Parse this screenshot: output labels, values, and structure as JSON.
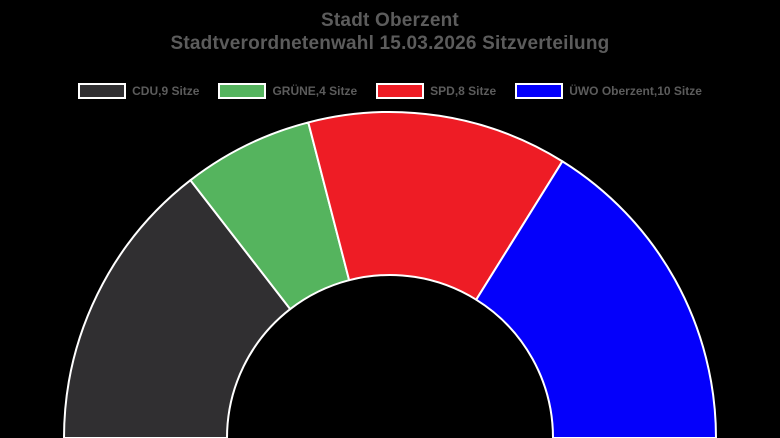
{
  "background_color": "#000000",
  "title": {
    "line1": "Stadt Oberzent",
    "line2": "Stadtverordnetenwahl 15.03.2026 Sitzverteilung",
    "color": "#5c5c5c"
  },
  "legend": {
    "position": "top-center",
    "swatch_border_color": "#ffffff",
    "items": [
      {
        "slug": "cdu",
        "label": "CDU,9 Sitze",
        "color": "#302f31"
      },
      {
        "slug": "gruene",
        "label": "GRÜNE,4 Sitze",
        "color": "#55b45e"
      },
      {
        "slug": "spd",
        "label": "SPD,8 Sitze",
        "color": "#ee1c25"
      },
      {
        "slug": "uewo-oberzent",
        "label": "ÜWO Oberzent,10 Sitze",
        "color": "#0400fb"
      }
    ]
  },
  "chart_data": {
    "type": "pie",
    "variant": "half-donut",
    "title": "Stadt Oberzent",
    "subtitle": "Stadtverordnetenwahl 15.03.2026 Sitzverteilung",
    "total_seats": 31,
    "start_angle_deg": 180,
    "end_angle_deg": 0,
    "inner_radius_ratio": 0.5,
    "segment_border_color": "#ffffff",
    "legend_position": "top",
    "series": [
      {
        "name": "CDU",
        "slug": "cdu",
        "seats": 9,
        "color": "#302f31",
        "legend_label": "CDU,9 Sitze"
      },
      {
        "name": "GRÜNE",
        "slug": "gruene",
        "seats": 4,
        "color": "#55b45e",
        "legend_label": "GRÜNE,4 Sitze"
      },
      {
        "name": "SPD",
        "slug": "spd",
        "seats": 8,
        "color": "#ee1c25",
        "legend_label": "SPD,8 Sitze"
      },
      {
        "name": "ÜWO Oberzent",
        "slug": "uewo-oberzent",
        "seats": 10,
        "color": "#0400fb",
        "legend_label": "ÜWO Oberzent,10 Sitze"
      }
    ]
  }
}
